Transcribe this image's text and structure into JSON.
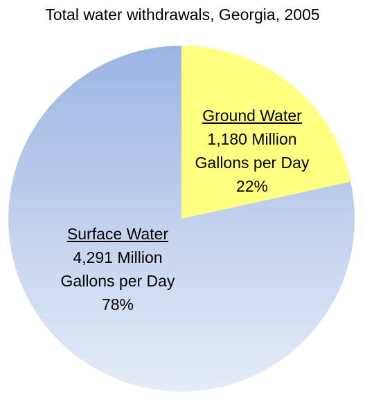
{
  "chart_data": {
    "type": "pie",
    "title": "Total water withdrawals, Georgia, 2005",
    "slices": [
      {
        "name": "Ground Water",
        "value": 1180,
        "value_label": "1,180 Million",
        "unit_label": "Gallons per Day",
        "percent": 22,
        "percent_label": "22%",
        "color": "#ffff80"
      },
      {
        "name": "Surface Water",
        "value": 4291,
        "value_label": "4,291 Million",
        "unit_label": "Gallons per Day",
        "percent": 78,
        "percent_label": "78%",
        "color_top": "#9bb5e3",
        "color_bottom": "#e6ecf8"
      }
    ]
  }
}
